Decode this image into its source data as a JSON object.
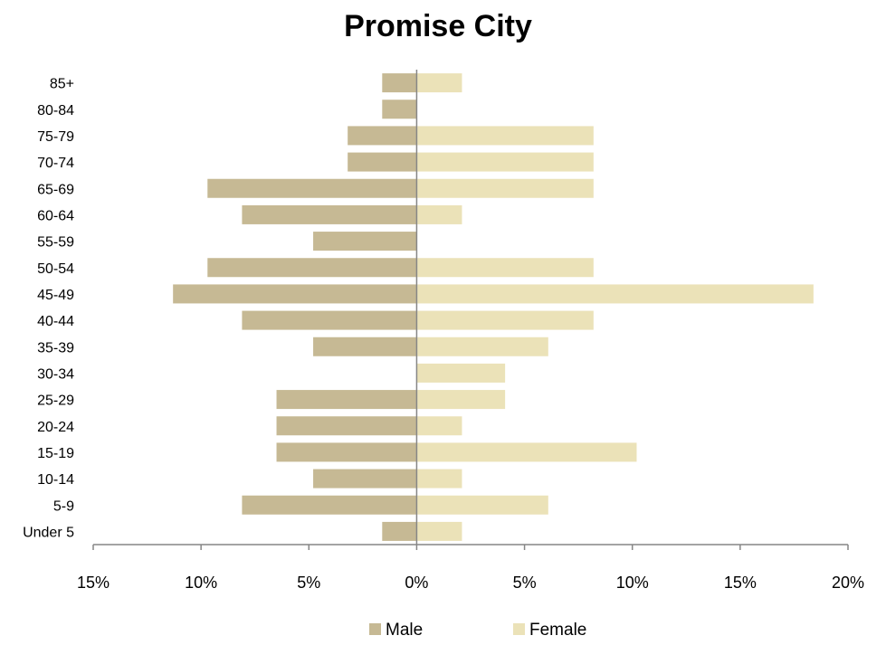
{
  "chart_data": {
    "type": "bar",
    "orientation": "horizontal",
    "title": "Promise City",
    "categories": [
      "Under 5",
      "5-9",
      "10-14",
      "15-19",
      "20-24",
      "25-29",
      "30-34",
      "35-39",
      "40-44",
      "45-49",
      "50-54",
      "55-59",
      "60-64",
      "65-69",
      "70-74",
      "75-79",
      "80-84",
      "85+"
    ],
    "series": [
      {
        "name": "Male",
        "color": "#c6b994",
        "values": [
          1.6,
          8.1,
          4.8,
          6.5,
          6.5,
          6.5,
          0,
          4.8,
          8.1,
          11.3,
          9.7,
          4.8,
          8.1,
          9.7,
          3.2,
          3.2,
          1.6,
          1.6
        ]
      },
      {
        "name": "Female",
        "color": "#ebe2b8",
        "values": [
          2.1,
          6.1,
          2.1,
          10.2,
          2.1,
          4.1,
          4.1,
          6.1,
          8.2,
          18.4,
          8.2,
          0,
          2.1,
          8.2,
          8.2,
          8.2,
          0,
          2.1
        ]
      }
    ],
    "xlim": [
      -15,
      20
    ],
    "xticks": [
      "15%",
      "10%",
      "5%",
      "0%",
      "5%",
      "10%",
      "15%",
      "20%"
    ],
    "xtick_values": [
      -15,
      -10,
      -5,
      0,
      5,
      10,
      15,
      20
    ],
    "legend": {
      "position": "bottom",
      "entries": [
        "Male",
        "Female"
      ]
    },
    "grid": false
  }
}
